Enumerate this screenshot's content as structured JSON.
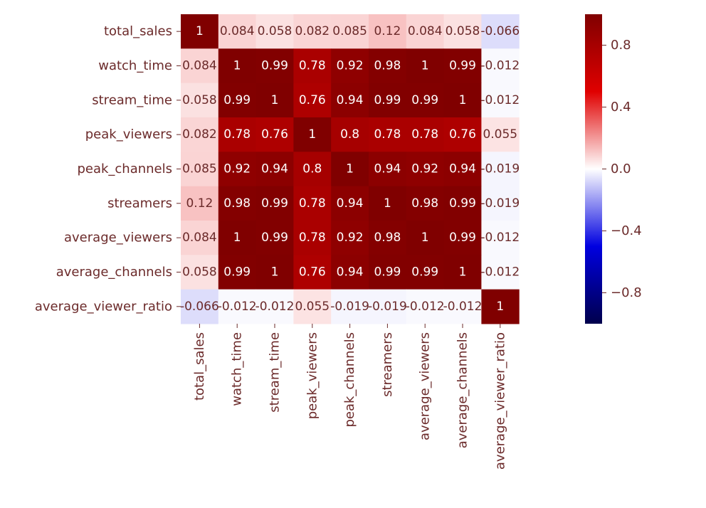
{
  "chart_data": {
    "type": "heatmap",
    "labels": [
      "total_sales",
      "watch_time",
      "stream_time",
      "peak_viewers",
      "peak_channels",
      "streamers",
      "average_viewers",
      "average_channels",
      "average_viewer_ratio"
    ],
    "values": [
      [
        1,
        0.084,
        0.058,
        0.082,
        0.085,
        0.12,
        0.084,
        0.058,
        -0.066
      ],
      [
        0.084,
        1,
        0.99,
        0.78,
        0.92,
        0.98,
        1,
        0.99,
        -0.012
      ],
      [
        0.058,
        0.99,
        1,
        0.76,
        0.94,
        0.99,
        0.99,
        1,
        -0.012
      ],
      [
        0.082,
        0.78,
        0.76,
        1,
        0.8,
        0.78,
        0.78,
        0.76,
        0.055
      ],
      [
        0.085,
        0.92,
        0.94,
        0.8,
        1,
        0.94,
        0.92,
        0.94,
        -0.019
      ],
      [
        0.12,
        0.98,
        0.99,
        0.78,
        0.94,
        1,
        0.98,
        0.99,
        -0.019
      ],
      [
        0.084,
        1,
        0.99,
        0.78,
        0.92,
        0.98,
        1,
        0.99,
        -0.012
      ],
      [
        0.058,
        0.99,
        1,
        0.76,
        0.94,
        0.99,
        0.99,
        1,
        -0.012
      ],
      [
        -0.066,
        -0.012,
        -0.012,
        0.055,
        -0.019,
        -0.019,
        -0.012,
        -0.012,
        1
      ]
    ],
    "annotations": [
      [
        "1",
        "0.084",
        "0.058",
        "0.082",
        "0.085",
        "0.12",
        "0.084",
        "0.058",
        "-0.066"
      ],
      [
        "0.084",
        "1",
        "0.99",
        "0.78",
        "0.92",
        "0.98",
        "1",
        "0.99",
        "-0.012"
      ],
      [
        "0.058",
        "0.99",
        "1",
        "0.76",
        "0.94",
        "0.99",
        "0.99",
        "1",
        "-0.012"
      ],
      [
        "0.082",
        "0.78",
        "0.76",
        "1",
        "0.8",
        "0.78",
        "0.78",
        "0.76",
        "0.055"
      ],
      [
        "0.085",
        "0.92",
        "0.94",
        "0.8",
        "1",
        "0.94",
        "0.92",
        "0.94",
        "-0.019"
      ],
      [
        "0.12",
        "0.98",
        "0.99",
        "0.78",
        "0.94",
        "1",
        "0.98",
        "0.99",
        "-0.019"
      ],
      [
        "0.084",
        "1",
        "0.99",
        "0.78",
        "0.92",
        "0.98",
        "1",
        "0.99",
        "-0.012"
      ],
      [
        "0.058",
        "0.99",
        "1",
        "0.76",
        "0.94",
        "0.99",
        "0.99",
        "1",
        "-0.012"
      ],
      [
        "-0.066",
        "-0.012",
        "-0.012",
        "0.055",
        "-0.019",
        "-0.019",
        "-0.012",
        "-0.012",
        "1"
      ]
    ],
    "colorbar": {
      "range": [
        -1,
        1
      ],
      "ticks": [
        0.8,
        0.4,
        0.0,
        -0.4,
        -0.8
      ],
      "tick_labels": [
        "0.8",
        "0.4",
        "0.0",
        "−0.4",
        "−0.8"
      ]
    },
    "colormap": "seismic",
    "colors": {
      "label_text": "#6b2a2a",
      "annotation_text": "#ffffff"
    }
  }
}
